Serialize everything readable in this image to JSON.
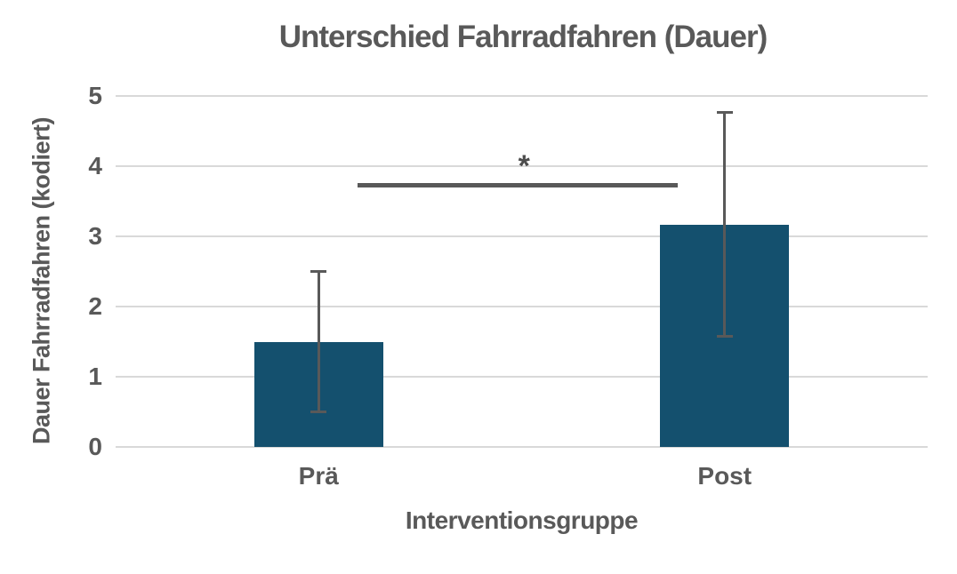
{
  "chart_data": {
    "type": "bar",
    "title": "Unterschied Fahrradfahren (Dauer)",
    "xlabel": "Interventionsgruppe",
    "ylabel": "Dauer Fahrradfahren (kodiert)",
    "categories": [
      "Prä",
      "Post"
    ],
    "values": [
      1.5,
      3.17
    ],
    "error_bars": [
      {
        "low": 0.5,
        "high": 2.5
      },
      {
        "low": 1.58,
        "high": 4.76
      }
    ],
    "yticks": [
      0,
      1,
      2,
      3,
      4,
      5
    ],
    "ylim": [
      0,
      5
    ],
    "significance": {
      "label": "*",
      "y": 3.73,
      "x_start_frac": 0.298,
      "x_end_frac": 0.692,
      "label_x_frac": 0.503
    },
    "layout": {
      "bar_width_frac": 0.159,
      "grid": true,
      "legend": false
    },
    "colors": {
      "bar": "#14506e",
      "grid": "#d9d9d9",
      "text": "#595959",
      "error": "#595959",
      "significance": "#595959",
      "background": "#ffffff"
    }
  }
}
